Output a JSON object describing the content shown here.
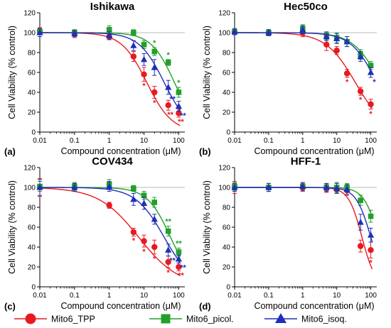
{
  "figure": {
    "legend": [
      {
        "series": "Mito6_TPP",
        "color": "#e8191f",
        "marker": "circle"
      },
      {
        "series": "Mito6_picol.",
        "color": "#22a02a",
        "marker": "square"
      },
      {
        "series": "Mito6_isoq.",
        "color": "#1e2fb8",
        "marker": "triangle"
      }
    ]
  },
  "chart_data": [
    {
      "type": "line",
      "panel_label": "(a)",
      "title": "Ishikawa",
      "xlabel": "Compound concentration (μM)",
      "ylabel": "Cell Viability (% control)",
      "x_scale": "log",
      "xlim": [
        0.01,
        150
      ],
      "ylim": [
        0,
        120
      ],
      "x_ticks": [
        "0.01",
        "0.1",
        "1",
        "10",
        "100"
      ],
      "y_ticks": [
        "0",
        "20",
        "40",
        "60",
        "80",
        "100",
        "120"
      ],
      "reference_line": 100,
      "x": [
        0.01,
        0.1,
        1,
        5,
        10,
        20,
        50,
        100
      ],
      "series": [
        {
          "name": "Mito6_TPP",
          "color": "#e8191f",
          "values": [
            102,
            99,
            96,
            76,
            58,
            40,
            27,
            19
          ],
          "errors": [
            3,
            4,
            3,
            5,
            7,
            6,
            5,
            4
          ],
          "significance": [
            "",
            "",
            "",
            "",
            "*",
            "*",
            "**",
            "**"
          ],
          "fit": {
            "ic50": 12,
            "hill": 1.2,
            "bottom": 0
          }
        },
        {
          "name": "Mito6_picol.",
          "color": "#22a02a",
          "values": [
            101,
            100,
            103,
            100,
            88,
            81,
            70,
            40
          ],
          "errors": [
            3,
            3,
            4,
            3,
            4,
            4,
            3,
            5
          ],
          "significance": [
            "",
            "",
            "",
            "",
            "",
            "*",
            "*",
            "*"
          ],
          "fit": {
            "ic50": 75,
            "hill": 1.3,
            "bottom": 0
          }
        },
        {
          "name": "Mito6_isoq.",
          "color": "#1e2fb8",
          "values": [
            100,
            99,
            97,
            87,
            73,
            65,
            45,
            26
          ],
          "errors": [
            4,
            3,
            4,
            5,
            6,
            8,
            7,
            5
          ],
          "significance": [
            "",
            "",
            "",
            "",
            "",
            "",
            "**",
            "**"
          ],
          "fit": {
            "ic50": 38,
            "hill": 1.2,
            "bottom": 0
          }
        }
      ]
    },
    {
      "type": "line",
      "panel_label": "(b)",
      "title": "Hec50co",
      "xlabel": "Compound concentration (μM)",
      "ylabel": "Cell Viability (% control)",
      "x_scale": "log",
      "xlim": [
        0.01,
        150
      ],
      "ylim": [
        0,
        120
      ],
      "x_ticks": [
        "0.01",
        "0.1",
        "1",
        "10",
        "100"
      ],
      "y_ticks": [
        "0",
        "20",
        "40",
        "60",
        "80",
        "100",
        "120"
      ],
      "reference_line": 100,
      "x": [
        0.01,
        0.1,
        1,
        5,
        10,
        20,
        50,
        100
      ],
      "series": [
        {
          "name": "Mito6_TPP",
          "color": "#e8191f",
          "values": [
            101,
            100,
            100,
            88,
            82,
            59,
            41,
            28
          ],
          "errors": [
            3,
            3,
            4,
            6,
            4,
            4,
            4,
            5
          ],
          "significance": [
            "",
            "",
            "",
            "",
            "",
            "*",
            "*",
            "*"
          ],
          "fit": {
            "ic50": 35,
            "hill": 1.0,
            "bottom": 0
          }
        },
        {
          "name": "Mito6_picol.",
          "color": "#22a02a",
          "values": [
            101,
            100,
            104,
            97,
            95,
            91,
            78,
            67
          ],
          "errors": [
            3,
            3,
            4,
            4,
            5,
            5,
            5,
            4
          ],
          "significance": [
            "",
            "",
            "",
            "",
            "",
            "",
            "",
            ""
          ],
          "fit": {
            "ic50": 190,
            "hill": 1.1,
            "bottom": 0
          }
        },
        {
          "name": "Mito6_isoq.",
          "color": "#1e2fb8",
          "values": [
            101,
            100,
            103,
            96,
            94,
            91,
            76,
            60
          ],
          "errors": [
            3,
            3,
            4,
            4,
            5,
            5,
            5,
            5
          ],
          "significance": [
            "",
            "",
            "",
            "",
            "",
            "",
            "",
            "*"
          ],
          "fit": {
            "ic50": 150,
            "hill": 1.15,
            "bottom": 0
          }
        }
      ]
    },
    {
      "type": "line",
      "panel_label": "(c)",
      "title": "COV434",
      "xlabel": "Compound concentration (μM)",
      "ylabel": "Cell Viability (% control)",
      "x_scale": "log",
      "xlim": [
        0.01,
        150
      ],
      "ylim": [
        0,
        120
      ],
      "x_ticks": [
        "0.01",
        "0.1",
        "1",
        "10",
        "100"
      ],
      "y_ticks": [
        "0",
        "20",
        "40",
        "60",
        "80",
        "100",
        "120"
      ],
      "reference_line": 100,
      "x": [
        0.01,
        0.1,
        1,
        5,
        10,
        20,
        50,
        100
      ],
      "series": [
        {
          "name": "Mito6_TPP",
          "color": "#e8191f",
          "values": [
            100,
            100,
            82,
            55,
            46,
            40,
            25,
            20
          ],
          "errors": [
            9,
            4,
            3,
            4,
            6,
            7,
            6,
            4
          ],
          "significance": [
            "",
            "",
            "",
            "*",
            "*",
            "*",
            "*",
            "**"
          ],
          "fit": {
            "ic50": 7,
            "hill": 0.75,
            "bottom": 0
          }
        },
        {
          "name": "Mito6_picol.",
          "color": "#22a02a",
          "values": [
            101,
            101,
            103,
            99,
            92,
            85,
            56,
            35
          ],
          "errors": [
            5,
            4,
            5,
            3,
            4,
            5,
            5,
            4
          ],
          "significance": [
            "",
            "",
            "",
            "",
            "",
            "",
            "**",
            "**"
          ],
          "fit": {
            "ic50": 58,
            "hill": 1.3,
            "bottom": 0
          }
        },
        {
          "name": "Mito6_isoq.",
          "color": "#1e2fb8",
          "values": [
            100,
            100,
            101,
            88,
            84,
            68,
            37,
            28
          ],
          "errors": [
            8,
            4,
            5,
            6,
            6,
            5,
            6,
            4
          ],
          "significance": [
            "",
            "",
            "",
            "",
            "",
            "",
            "**",
            "**"
          ],
          "fit": {
            "ic50": 38,
            "hill": 1.05,
            "bottom": 0
          }
        }
      ]
    },
    {
      "type": "line",
      "panel_label": "(d)",
      "title": "HFF-1",
      "xlabel": "Compound concentration (μM)",
      "ylabel": "Cell Viability (% control)",
      "x_scale": "log",
      "xlim": [
        0.01,
        150
      ],
      "ylim": [
        0,
        120
      ],
      "x_ticks": [
        "0.01",
        "0.1",
        "1",
        "10",
        "100"
      ],
      "y_ticks": [
        "0",
        "20",
        "40",
        "60",
        "80",
        "100",
        "120"
      ],
      "reference_line": 100,
      "x": [
        0.01,
        0.1,
        1,
        5,
        10,
        20,
        50,
        100
      ],
      "series": [
        {
          "name": "Mito6_TPP",
          "color": "#e8191f",
          "values": [
            100,
            100,
            100,
            99,
            98,
            97,
            41,
            37
          ],
          "errors": [
            6,
            4,
            4,
            4,
            4,
            5,
            6,
            8
          ],
          "significance": [
            "",
            "",
            "",
            "",
            "",
            "",
            "",
            "*"
          ],
          "fit": {
            "ic50": 55,
            "hill": 2.2,
            "bottom": 0
          }
        },
        {
          "name": "Mito6_picol.",
          "color": "#22a02a",
          "values": [
            101,
            100,
            101,
            100,
            100,
            100,
            87,
            71
          ],
          "errors": [
            4,
            4,
            4,
            4,
            5,
            4,
            5,
            6
          ],
          "significance": [
            "",
            "",
            "",
            "",
            "",
            "",
            "",
            ""
          ],
          "fit": {
            "ic50": 170,
            "hill": 2.0,
            "bottom": 0
          }
        },
        {
          "name": "Mito6_isoq.",
          "color": "#1e2fb8",
          "values": [
            100,
            100,
            101,
            100,
            99,
            98,
            65,
            52
          ],
          "errors": [
            4,
            4,
            4,
            4,
            5,
            5,
            8,
            7
          ],
          "significance": [
            "",
            "",
            "",
            "",
            "",
            "",
            "",
            ""
          ],
          "fit": {
            "ic50": 100,
            "hill": 2.0,
            "bottom": 0
          }
        }
      ]
    }
  ]
}
